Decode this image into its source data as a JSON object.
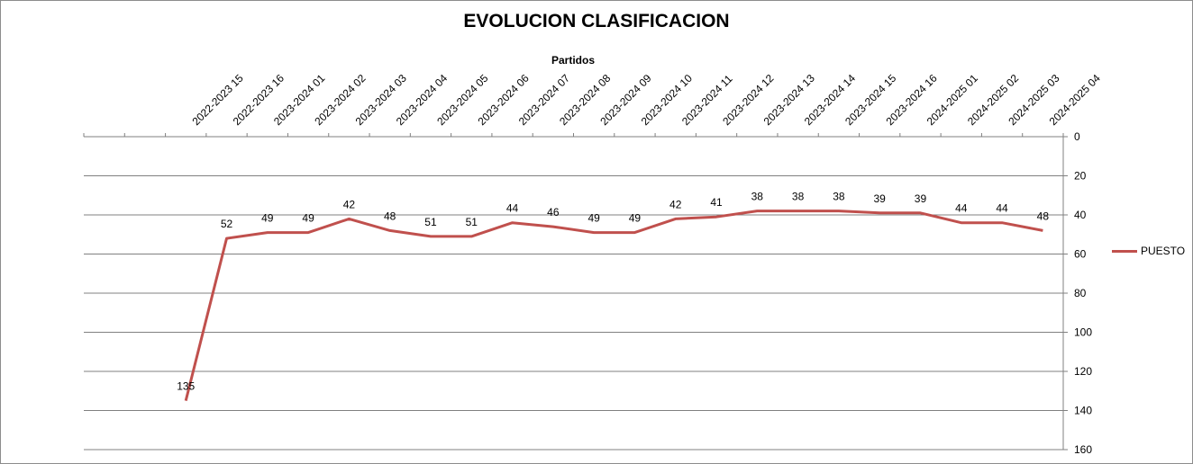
{
  "chart_data": {
    "type": "line",
    "title": "EVOLUCION CLASIFICACION",
    "xlabel": "Partidos",
    "ylabel": "",
    "categories": [
      "",
      "",
      "2022-2023 15",
      "2022-2023 16",
      "2023-2024 01",
      "2023-2024 02",
      "2023-2024 03",
      "2023-2024 04",
      "2023-2024 05",
      "2023-2024 06",
      "2023-2024 07",
      "2023-2024 08",
      "2023-2024 09",
      "2023-2024 10",
      "2023-2024 11",
      "2023-2024 12",
      "2023-2024 13",
      "2023-2024 14",
      "2023-2024 15",
      "2023-2024 16",
      "2024-2025 01",
      "2024-2025 02",
      "2024-2025 03",
      "2024-2025 04"
    ],
    "series": [
      {
        "name": "PUESTO",
        "color": "#c0504d",
        "values": [
          null,
          null,
          135,
          52,
          49,
          49,
          42,
          48,
          51,
          51,
          44,
          46,
          49,
          49,
          42,
          41,
          38,
          38,
          38,
          39,
          39,
          44,
          44,
          48
        ]
      }
    ],
    "ylim": [
      0,
      160
    ],
    "y_ticks": [
      0,
      20,
      40,
      60,
      80,
      100,
      120,
      140,
      160
    ],
    "y_reversed": true,
    "y_axis_side": "right",
    "x_axis_position": "top",
    "grid": "horizontal",
    "legend_position": "right"
  }
}
